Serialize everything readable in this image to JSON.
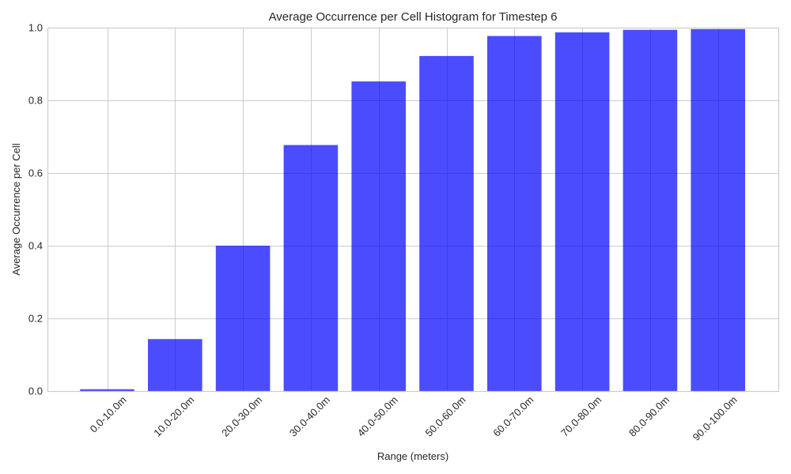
{
  "chart_data": {
    "type": "bar",
    "title": "Average Occurrence per Cell Histogram for Timestep 6",
    "xlabel": "Range (meters)",
    "ylabel": "Average Occurrence per Cell",
    "categories": [
      "0.0-10.0m",
      "10.0-20.0m",
      "20.0-30.0m",
      "30.0-40.0m",
      "40.0-50.0m",
      "50.0-60.0m",
      "60.0-70.0m",
      "70.0-80.0m",
      "80.0-90.0m",
      "90.0-100.0m"
    ],
    "values": [
      0.005,
      0.143,
      0.4,
      0.677,
      0.852,
      0.922,
      0.977,
      0.987,
      0.994,
      0.996
    ],
    "ylim": [
      0,
      1.0
    ],
    "yticks": [
      "0.0",
      "0.2",
      "0.4",
      "0.6",
      "0.8",
      "1.0"
    ],
    "grid": true,
    "legend": "none",
    "bar_color": "#0000ff",
    "bar_opacity": 0.7
  }
}
